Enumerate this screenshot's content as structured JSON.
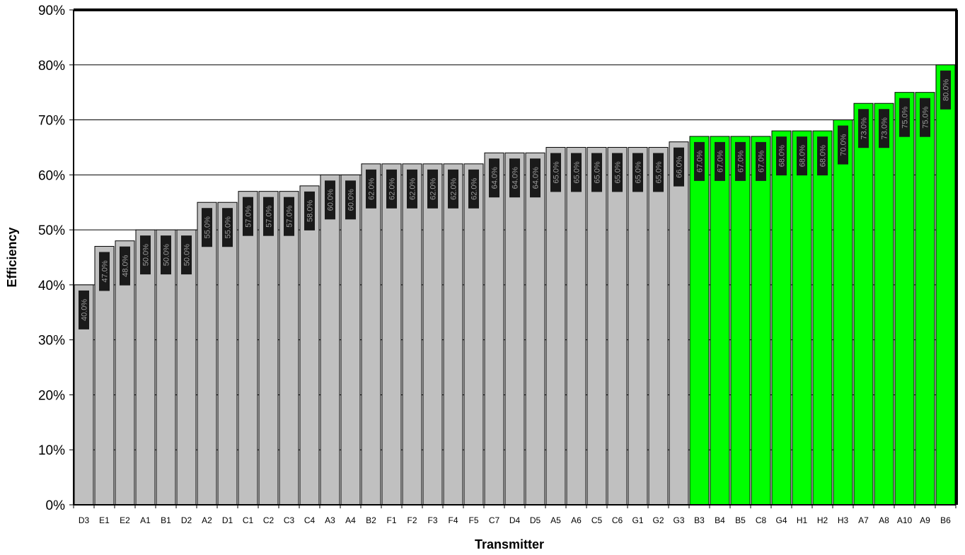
{
  "chart_data": {
    "type": "bar",
    "xlabel": "Transmitter",
    "ylabel": "Efficiency",
    "ylim": [
      0,
      90
    ],
    "y_tick_step": 10,
    "y_tick_format": "percent",
    "grid": "horizontal",
    "categories": [
      "D3",
      "E1",
      "E2",
      "A1",
      "B1",
      "D2",
      "A2",
      "D1",
      "C1",
      "C2",
      "C3",
      "C4",
      "A3",
      "A4",
      "B2",
      "F1",
      "F2",
      "F3",
      "F4",
      "F5",
      "C7",
      "D4",
      "D5",
      "A5",
      "A6",
      "C5",
      "C6",
      "G1",
      "G2",
      "G3",
      "B3",
      "B4",
      "B5",
      "C8",
      "G4",
      "H1",
      "H2",
      "H3",
      "A7",
      "A8",
      "A10",
      "A9",
      "B6"
    ],
    "values": [
      40,
      47,
      48,
      50,
      50,
      50,
      55,
      55,
      57,
      57,
      57,
      58,
      60,
      60,
      62,
      62,
      62,
      62,
      62,
      62,
      64,
      64,
      64,
      65,
      65,
      65,
      65,
      65,
      65,
      66,
      67,
      67,
      67,
      67,
      68,
      68,
      68,
      70,
      73,
      73,
      75,
      75,
      80
    ],
    "data_labels": [
      "40.0%",
      "47.0%",
      "48.0%",
      "50.0%",
      "50.0%",
      "50.0%",
      "55.0%",
      "55.0%",
      "57.0%",
      "57.0%",
      "57.0%",
      "58.0%",
      "60.0%",
      "60.0%",
      "62.0%",
      "62.0%",
      "62.0%",
      "62.0%",
      "62.0%",
      "62.0%",
      "64.0%",
      "64.0%",
      "64.0%",
      "65.0%",
      "65.0%",
      "65.0%",
      "65.0%",
      "65.0%",
      "65.0%",
      "66.0%",
      "67.0%",
      "67.0%",
      "67.0%",
      "67.0%",
      "68.0%",
      "68.0%",
      "68.0%",
      "70.0%",
      "73.0%",
      "73.0%",
      "75.0%",
      "75.0%",
      "80.0%"
    ],
    "highlight_from_index": 30,
    "colors": {
      "bar_default": "#c0c0c0",
      "bar_highlight": "#00ff00",
      "label_box": "#1a1a1a",
      "label_text": "#9a9a9a",
      "gridline": "#000000",
      "background": "#ffffff"
    }
  }
}
